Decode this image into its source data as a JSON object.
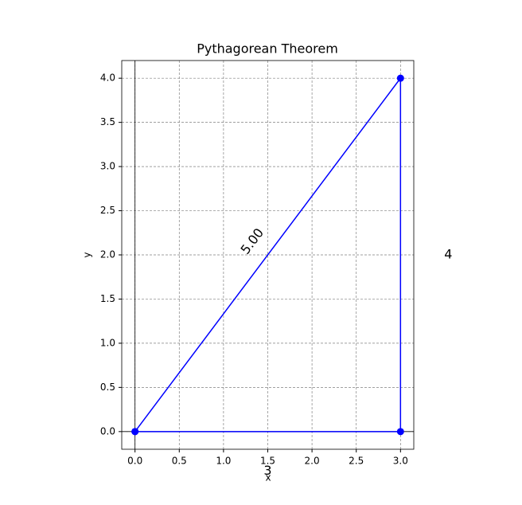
{
  "chart_data": {
    "type": "line",
    "title": "Pythagorean Theorem",
    "x_label": "x",
    "y_label": "y",
    "series": [
      {
        "color": "#0000ff",
        "x": [
          0,
          3,
          3,
          0
        ],
        "values": [
          0,
          0,
          4,
          0
        ]
      }
    ],
    "markers": true,
    "grid": true,
    "zero_lines": true,
    "xlim": [
      -0.15,
      3.15
    ],
    "xticks": [
      {
        "value": 0,
        "label": "0.0"
      },
      {
        "value": 0.5,
        "label": "0.5"
      },
      {
        "value": 1,
        "label": "1.0"
      },
      {
        "value": 1.5,
        "label": "1.5"
      },
      {
        "value": 2,
        "label": "2.0"
      },
      {
        "value": 2.5,
        "label": "2.5"
      },
      {
        "value": 3,
        "label": "3.0"
      }
    ],
    "ylim": [
      -0.2,
      4.2
    ],
    "yticks": [
      {
        "value": 0,
        "label": "0.0"
      },
      {
        "value": 0.5,
        "label": "0.5"
      },
      {
        "value": 1,
        "label": "1.0"
      },
      {
        "value": 1.5,
        "label": "1.5"
      },
      {
        "value": 2,
        "label": "2.0"
      },
      {
        "value": 2.5,
        "label": "2.5"
      },
      {
        "value": 3,
        "label": "3.0"
      },
      {
        "value": 3.5,
        "label": "3.5"
      },
      {
        "value": 4,
        "label": "4.0"
      }
    ],
    "annotations": [
      {
        "text": "3",
        "x": 1.5,
        "y": -0.45,
        "rotation": 0
      },
      {
        "text": "4",
        "x": 3.54,
        "y": 2.0,
        "rotation": 0
      },
      {
        "text": "5.00",
        "x": 1.33,
        "y": 2.15,
        "rotation": 53.13
      }
    ]
  }
}
